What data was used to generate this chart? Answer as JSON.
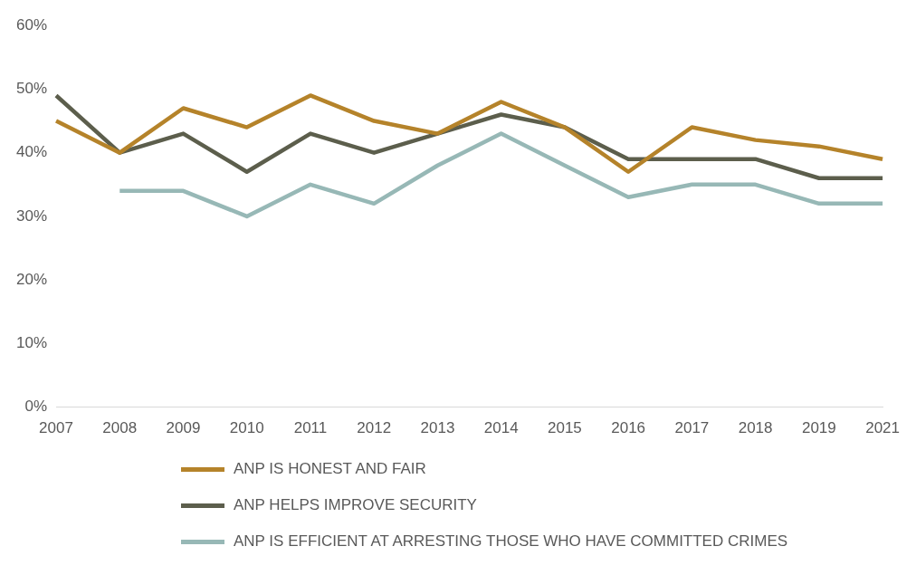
{
  "chart_data": {
    "type": "line",
    "categories": [
      "2007",
      "2008",
      "2009",
      "2010",
      "2011",
      "2012",
      "2013",
      "2014",
      "2015",
      "2016",
      "2017",
      "2018",
      "2019",
      "2021"
    ],
    "series": [
      {
        "name": "ANP IS HONEST AND FAIR",
        "color": "#b5832a",
        "values": [
          45,
          40,
          47,
          44,
          49,
          45,
          43,
          48,
          44,
          37,
          44,
          42,
          41,
          39
        ]
      },
      {
        "name": "ANP HELPS IMPROVE SECURITY",
        "color": "#5c5e4c",
        "values": [
          49,
          40,
          43,
          37,
          43,
          40,
          43,
          46,
          44,
          39,
          39,
          39,
          36,
          36
        ]
      },
      {
        "name": "ANP IS EFFICIENT AT ARRESTING THOSE WHO HAVE COMMITTED CRIMES",
        "color": "#97b8b6",
        "values": [
          null,
          34,
          34,
          30,
          35,
          32,
          38,
          43,
          38,
          33,
          35,
          35,
          32,
          32
        ]
      }
    ],
    "ylim": [
      0,
      60
    ],
    "yticks": [
      {
        "value": 0,
        "label": "0%"
      },
      {
        "value": 10,
        "label": "10%"
      },
      {
        "value": 20,
        "label": "20%"
      },
      {
        "value": 30,
        "label": "30%"
      },
      {
        "value": 40,
        "label": "40%"
      },
      {
        "value": 50,
        "label": "50%"
      },
      {
        "value": 60,
        "label": "60%"
      }
    ],
    "grid": false,
    "legend": "bottom",
    "marker": "none",
    "line_style": "solid"
  }
}
